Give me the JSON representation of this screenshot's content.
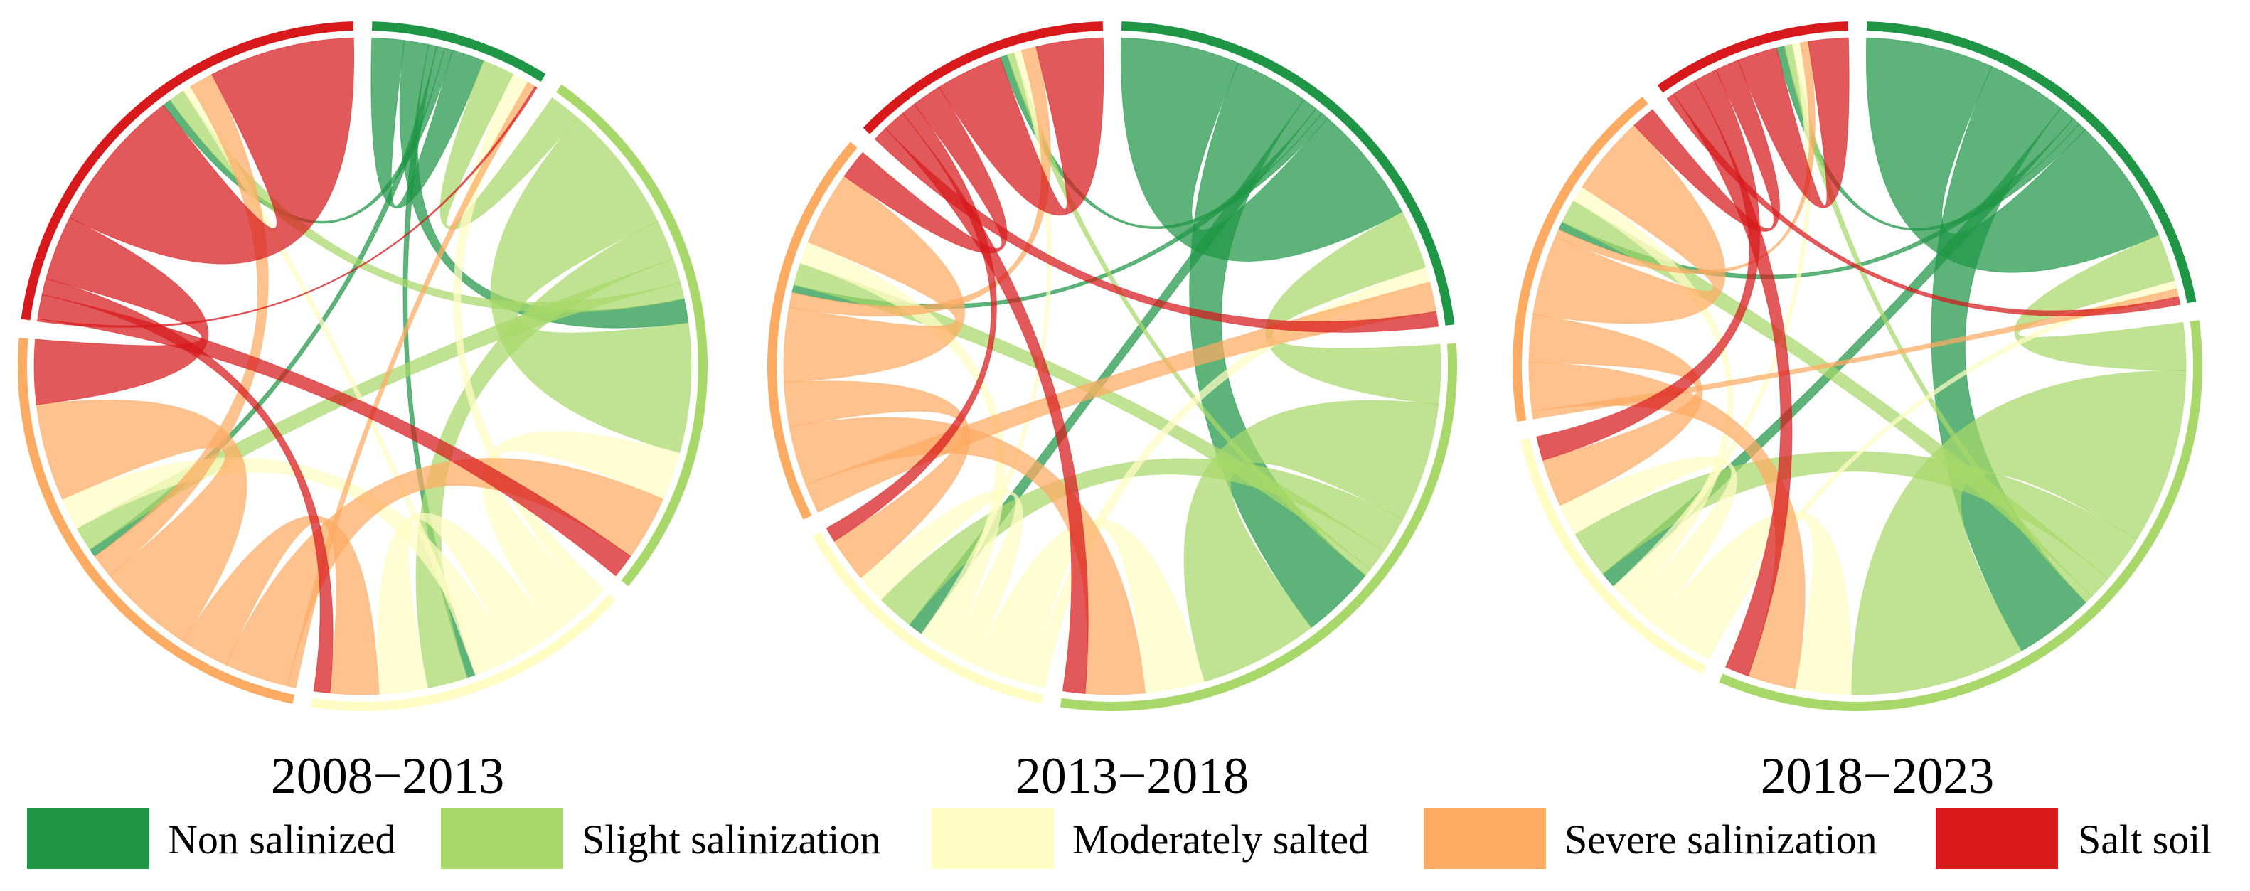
{
  "legend": {
    "items": [
      {
        "label": "Non salinized",
        "color": "#1E9645"
      },
      {
        "label": "Slight salinization",
        "color": "#A8D86A"
      },
      {
        "label": "Moderately salted",
        "color": "#FFFCC4"
      },
      {
        "label": "Severe salinization",
        "color": "#FDAA62"
      },
      {
        "label": "Salt soil",
        "color": "#D7191C"
      }
    ]
  },
  "chart_data": [
    {
      "type": "chord",
      "title": "2008−2013",
      "categories": [
        "Non salinized",
        "Slight salinization",
        "Moderately salted",
        "Severe salinization",
        "Salt soil"
      ],
      "matrix": [
        [
          4,
          3,
          1,
          1,
          1
        ],
        [
          4,
          16,
          5,
          3,
          2
        ],
        [
          2,
          6,
          6,
          4,
          1
        ],
        [
          1,
          8,
          6,
          12,
          3
        ],
        [
          0.3,
          3,
          2,
          8,
          18
        ]
      ]
    },
    {
      "type": "chord",
      "title": "2013−2018",
      "categories": [
        "Non salinized",
        "Slight salinization",
        "Moderately salted",
        "Severe salinization",
        "Salt soil"
      ],
      "matrix": [
        [
          16,
          10,
          2,
          1,
          1
        ],
        [
          8,
          16,
          5,
          3,
          1
        ],
        [
          2,
          8,
          4,
          3,
          1
        ],
        [
          4,
          8,
          6,
          10,
          2
        ],
        [
          2,
          3,
          2,
          4,
          9
        ]
      ]
    },
    {
      "type": "chord",
      "title": "2018−2023",
      "categories": [
        "Non salinized",
        "Slight salinization",
        "Moderately salted",
        "Severe salinization",
        "Salt soil"
      ],
      "matrix": [
        [
          16,
          10,
          2,
          1,
          1
        ],
        [
          6,
          22,
          6,
          3,
          1
        ],
        [
          1,
          7,
          4,
          2,
          1
        ],
        [
          1,
          6,
          6,
          10,
          1
        ],
        [
          1,
          3,
          3,
          3,
          5
        ]
      ]
    }
  ]
}
